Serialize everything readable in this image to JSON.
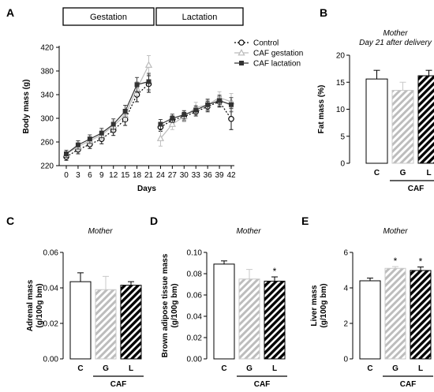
{
  "chart_data": [
    {
      "panel": "A",
      "type": "line",
      "phases": [
        "Gestation",
        "Lactation"
      ],
      "xlabel": "Days",
      "ylabel": "Body mass (g)",
      "ylim": [
        220,
        420
      ],
      "yticks": [
        220,
        260,
        300,
        340,
        380,
        420
      ],
      "xticks": [
        0,
        3,
        6,
        9,
        12,
        15,
        18,
        21,
        24,
        27,
        30,
        33,
        36,
        39,
        42
      ],
      "gestation_x": [
        0,
        3,
        6,
        9,
        12,
        15,
        18,
        21
      ],
      "lactation_x": [
        24,
        27,
        30,
        33,
        36,
        39,
        42
      ],
      "series": [
        {
          "name": "Control",
          "marker": "open-circle",
          "line": "dotted",
          "color": "#000000",
          "gestation": [
            235,
            247,
            256,
            265,
            280,
            298,
            340,
            358
          ],
          "lactation": [
            285,
            297,
            303,
            311,
            320,
            328,
            299
          ],
          "gestation_err": [
            6,
            7,
            7,
            8,
            9,
            10,
            12,
            14
          ],
          "lactation_err": [
            7,
            7,
            7,
            7,
            9,
            9,
            18
          ]
        },
        {
          "name": "CAF gestation",
          "marker": "open-triangle",
          "line": "solid",
          "color": "#bbbbbb",
          "gestation": [
            240,
            252,
            262,
            272,
            287,
            305,
            350,
            390
          ],
          "lactation": [
            266,
            290,
            303,
            318,
            323,
            335,
            328
          ],
          "gestation_err": [
            6,
            7,
            7,
            8,
            9,
            10,
            12,
            16
          ],
          "lactation_err": [
            13,
            9,
            9,
            9,
            10,
            10,
            14
          ]
        },
        {
          "name": "CAF lactation",
          "marker": "filled-square",
          "line": "solid",
          "color": "#333333",
          "gestation": [
            240,
            255,
            265,
            275,
            290,
            312,
            357,
            362
          ],
          "lactation": [
            290,
            300,
            306,
            314,
            323,
            330,
            323
          ],
          "gestation_err": [
            6,
            7,
            7,
            8,
            9,
            10,
            12,
            14
          ],
          "lactation_err": [
            8,
            7,
            7,
            7,
            9,
            9,
            12
          ]
        }
      ]
    },
    {
      "panel": "B",
      "type": "bar",
      "subtitle": [
        "Mother",
        "Day 21 after delivery"
      ],
      "ylabel": "Fat mass (%)",
      "ylim": [
        0,
        20
      ],
      "yticks": [
        "0",
        "5",
        "10",
        "15",
        "20"
      ],
      "categories": [
        "C",
        "G",
        "L"
      ],
      "group_label": "CAF",
      "values": [
        15.6,
        13.5,
        16.2
      ],
      "errors": [
        1.6,
        1.5,
        1.0
      ],
      "significant": [
        "",
        "",
        ""
      ]
    },
    {
      "panel": "C",
      "type": "bar",
      "subtitle": [
        "Mother"
      ],
      "ylabel": [
        "Adrenal mass",
        "(g/100g bm)"
      ],
      "ylim": [
        0,
        0.06
      ],
      "yticks": [
        "0.00",
        "0.02",
        "0.04",
        "0.06"
      ],
      "categories": [
        "C",
        "G",
        "L"
      ],
      "group_label": "CAF",
      "values": [
        0.0435,
        0.039,
        0.0415
      ],
      "errors": [
        0.005,
        0.0075,
        0.002
      ],
      "significant": [
        "",
        "",
        ""
      ]
    },
    {
      "panel": "D",
      "type": "bar",
      "subtitle": [
        "Mother"
      ],
      "ylabel": [
        "Brown adipose tissue mass",
        "(g/100g bm)"
      ],
      "ylim": [
        0,
        0.1
      ],
      "yticks": [
        "0.00",
        "0.02",
        "0.04",
        "0.06",
        "0.08",
        "0.10"
      ],
      "categories": [
        "C",
        "G",
        "L"
      ],
      "group_label": "CAF",
      "values": [
        0.089,
        0.075,
        0.073
      ],
      "errors": [
        0.003,
        0.009,
        0.004
      ],
      "significant": [
        "",
        "",
        "*"
      ]
    },
    {
      "panel": "E",
      "type": "bar",
      "subtitle": [
        "Mother"
      ],
      "ylabel": [
        "Liver mass",
        "(g/100g bm)"
      ],
      "ylim": [
        0,
        6
      ],
      "yticks": [
        "0",
        "2",
        "4",
        "6"
      ],
      "categories": [
        "C",
        "G",
        "L"
      ],
      "group_label": "CAF",
      "values": [
        4.4,
        5.1,
        4.98
      ],
      "errors": [
        0.15,
        0.1,
        0.2
      ],
      "significant": [
        "",
        "*",
        "*"
      ]
    }
  ]
}
